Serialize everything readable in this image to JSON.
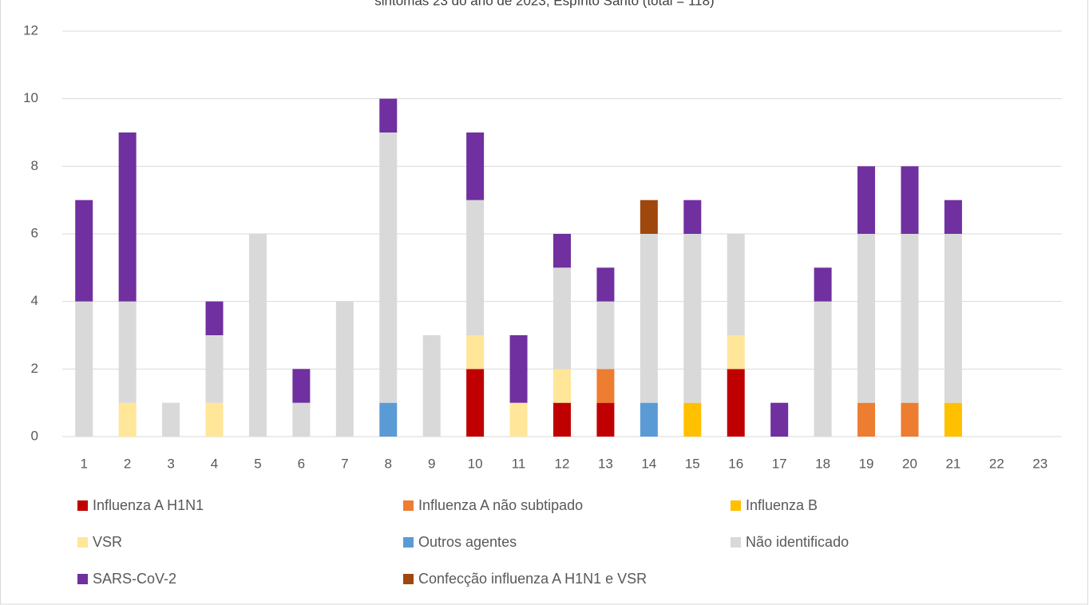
{
  "chart_data": {
    "type": "stacked_bar",
    "title": "sintomas 23 do ano de 2023, Espírito Santo (total = 118)",
    "categories": [
      "1",
      "2",
      "3",
      "4",
      "5",
      "6",
      "7",
      "8",
      "9",
      "10",
      "11",
      "12",
      "13",
      "14",
      "15",
      "16",
      "17",
      "18",
      "19",
      "20",
      "21",
      "22",
      "23"
    ],
    "series": [
      {
        "name": "Influenza A H1N1",
        "color": "#c00000",
        "values": [
          0,
          0,
          0,
          0,
          0,
          0,
          0,
          0,
          0,
          2,
          0,
          1,
          1,
          0,
          0,
          2,
          0,
          0,
          0,
          0,
          0,
          0,
          0
        ]
      },
      {
        "name": "Influenza A não subtipado",
        "color": "#ed7d31",
        "values": [
          0,
          0,
          0,
          0,
          0,
          0,
          0,
          0,
          0,
          0,
          0,
          0,
          1,
          0,
          0,
          0,
          0,
          0,
          1,
          1,
          0,
          0,
          0
        ]
      },
      {
        "name": "Influenza B",
        "color": "#ffc000",
        "values": [
          0,
          0,
          0,
          0,
          0,
          0,
          0,
          0,
          0,
          0,
          0,
          0,
          0,
          0,
          1,
          0,
          0,
          0,
          0,
          0,
          1,
          0,
          0
        ]
      },
      {
        "name": "VSR",
        "color": "#ffe699",
        "values": [
          0,
          1,
          0,
          1,
          0,
          0,
          0,
          0,
          0,
          1,
          1,
          1,
          0,
          0,
          0,
          1,
          0,
          0,
          0,
          0,
          0,
          0,
          0
        ]
      },
      {
        "name": "Outros agentes",
        "color": "#5b9bd5",
        "values": [
          0,
          0,
          0,
          0,
          0,
          0,
          0,
          1,
          0,
          0,
          0,
          0,
          0,
          1,
          0,
          0,
          0,
          0,
          0,
          0,
          0,
          0,
          0
        ]
      },
      {
        "name": "Não identificado",
        "color": "#d9d9d9",
        "values": [
          4,
          3,
          1,
          2,
          6,
          1,
          4,
          8,
          3,
          4,
          0,
          3,
          2,
          5,
          5,
          3,
          0,
          4,
          5,
          5,
          5,
          0,
          0
        ]
      },
      {
        "name": "SARS-CoV-2",
        "color": "#7030a0",
        "values": [
          3,
          5,
          0,
          1,
          0,
          1,
          0,
          1,
          0,
          2,
          2,
          1,
          1,
          0,
          1,
          0,
          1,
          1,
          2,
          2,
          1,
          0,
          0
        ]
      },
      {
        "name": "Confecção influenza A H1N1 e VSR",
        "color": "#9e480e",
        "values": [
          0,
          0,
          0,
          0,
          0,
          0,
          0,
          0,
          0,
          0,
          0,
          0,
          0,
          1,
          0,
          0,
          0,
          0,
          0,
          0,
          0,
          0,
          0
        ]
      }
    ],
    "ylim": [
      0,
      12
    ],
    "yticks": [
      0,
      2,
      4,
      6,
      8,
      10,
      12
    ],
    "grid": true,
    "legend": "bottom"
  }
}
